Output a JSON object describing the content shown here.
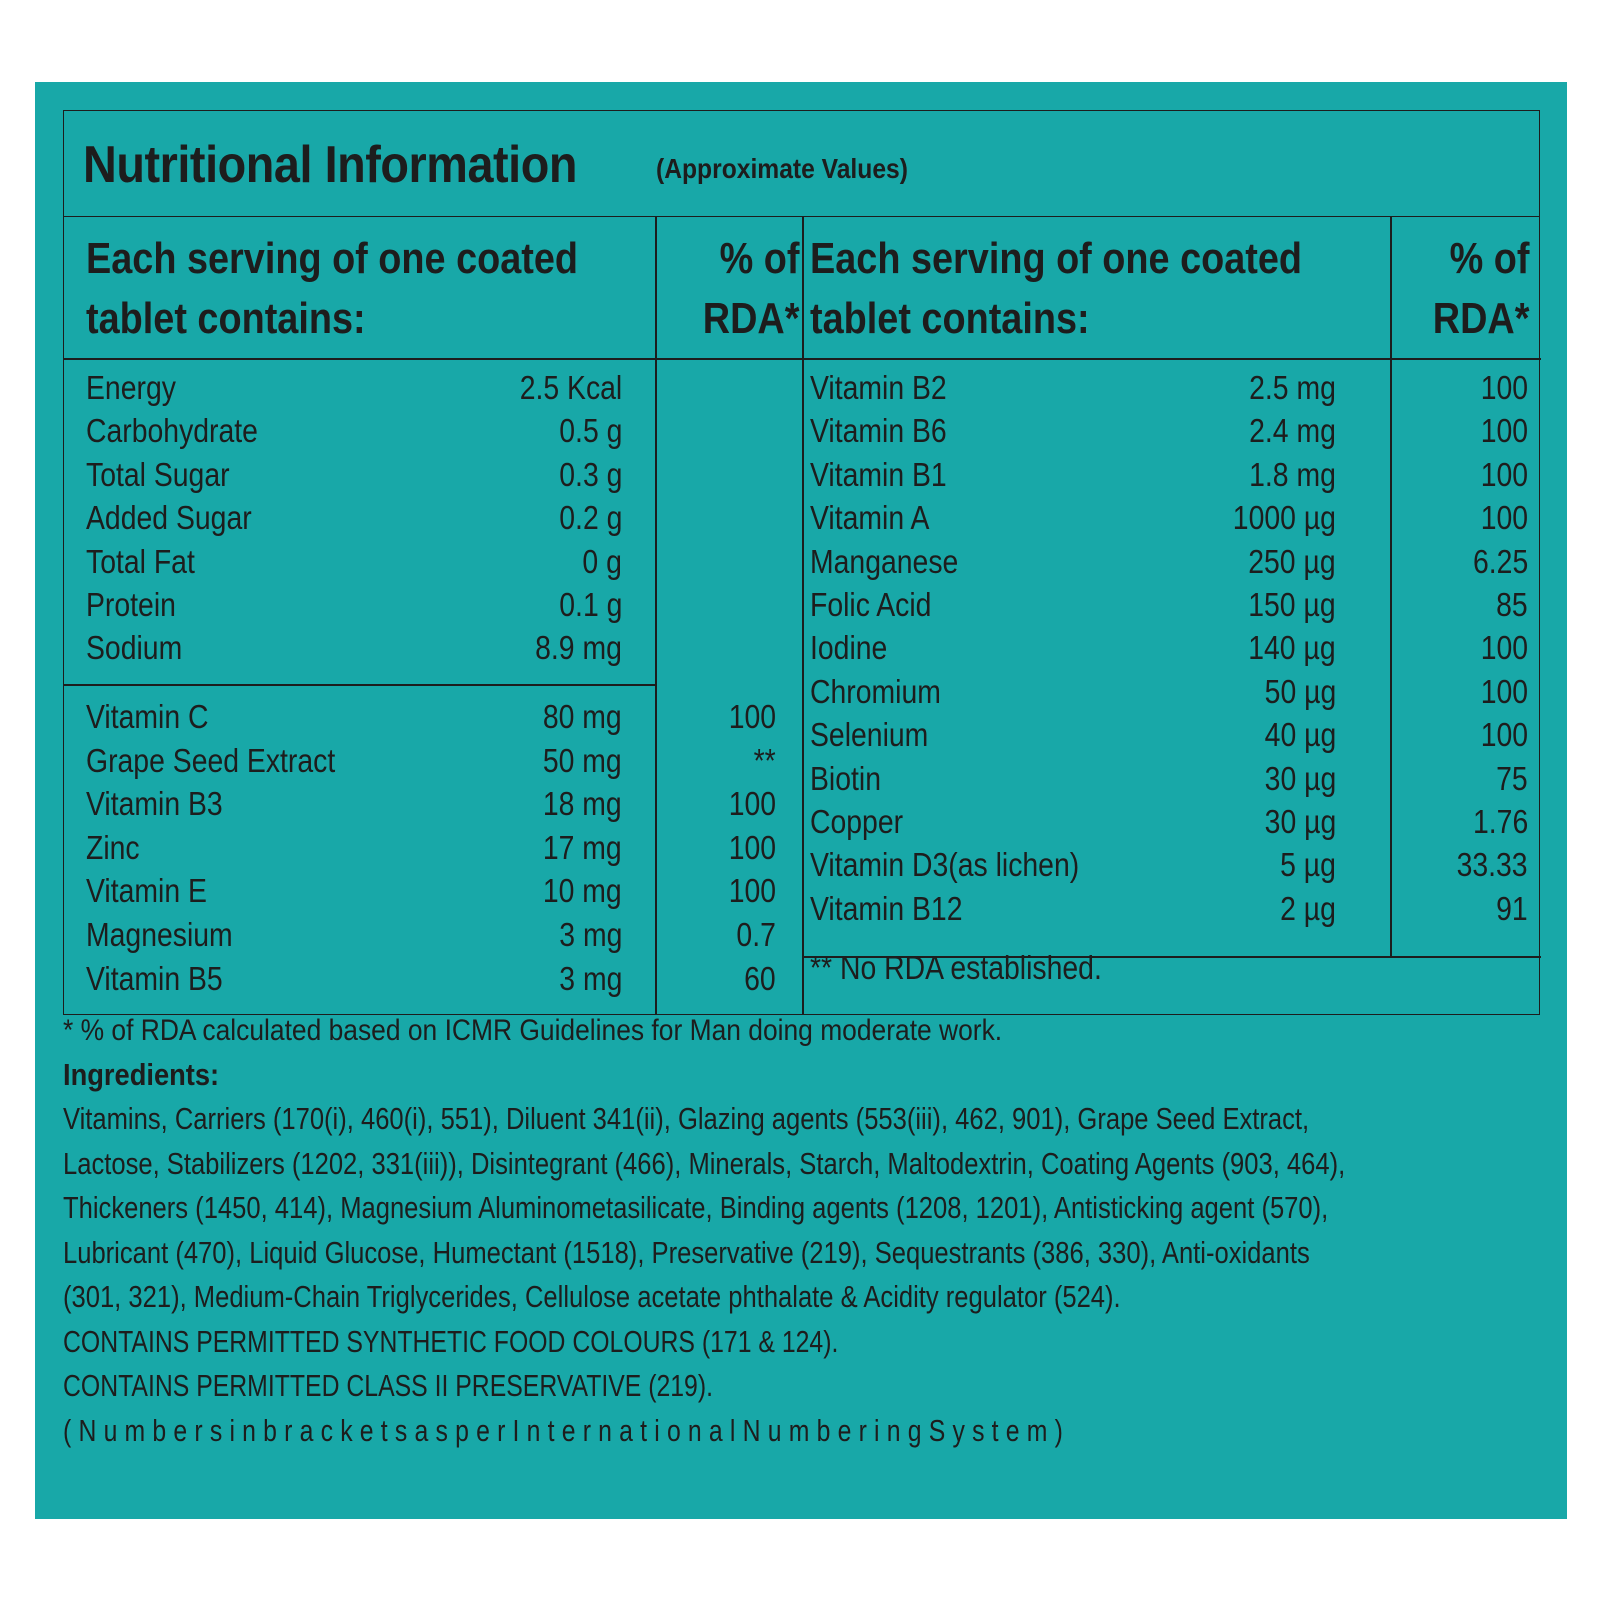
{
  "title": "Nutritional Information",
  "subtitle": "(Approximate Values)",
  "left": {
    "header_line1": "Each serving of one coated",
    "header_line2": "tablet contains:",
    "rda_line1": "% of",
    "rda_line2": "RDA*",
    "group1": [
      {
        "name": "Energy",
        "amount": "2.5 Kcal",
        "rda": ""
      },
      {
        "name": "Carbohydrate",
        "amount": "0.5 g",
        "rda": ""
      },
      {
        "name": "Total Sugar",
        "amount": "0.3 g",
        "rda": ""
      },
      {
        "name": "Added Sugar",
        "amount": "0.2 g",
        "rda": ""
      },
      {
        "name": "Total Fat",
        "amount": "0 g",
        "rda": ""
      },
      {
        "name": "Protein",
        "amount": "0.1 g",
        "rda": ""
      },
      {
        "name": "Sodium",
        "amount": "8.9 mg",
        "rda": ""
      }
    ],
    "group2": [
      {
        "name": "Vitamin C",
        "amount": "80 mg",
        "rda": "100"
      },
      {
        "name": "Grape Seed Extract",
        "amount": "50 mg",
        "rda": "**"
      },
      {
        "name": "Vitamin B3",
        "amount": "18 mg",
        "rda": "100"
      },
      {
        "name": "Zinc",
        "amount": "17 mg",
        "rda": "100"
      },
      {
        "name": "Vitamin E",
        "amount": "10 mg",
        "rda": "100"
      },
      {
        "name": "Magnesium",
        "amount": "3 mg",
        "rda": "0.7"
      },
      {
        "name": "Vitamin B5",
        "amount": "3 mg",
        "rda": "60"
      }
    ]
  },
  "right": {
    "header_line1": "Each serving of one coated",
    "header_line2": "tablet contains:",
    "rda_line1": "% of",
    "rda_line2": "RDA*",
    "rows": [
      {
        "name": "Vitamin B2",
        "amount": "2.5 mg",
        "rda": "100"
      },
      {
        "name": "Vitamin B6",
        "amount": "2.4 mg",
        "rda": "100"
      },
      {
        "name": "Vitamin B1",
        "amount": "1.8 mg",
        "rda": "100"
      },
      {
        "name": "Vitamin A",
        "amount": "1000 µg",
        "rda": "100"
      },
      {
        "name": "Manganese",
        "amount": "250 µg",
        "rda": "6.25"
      },
      {
        "name": "Folic Acid",
        "amount": "150 µg",
        "rda": "85"
      },
      {
        "name": "Iodine",
        "amount": "140 µg",
        "rda": "100"
      },
      {
        "name": "Chromium",
        "amount": "50 µg",
        "rda": "100"
      },
      {
        "name": "Selenium",
        "amount": "40 µg",
        "rda": "100"
      },
      {
        "name": "Biotin",
        "amount": "30 µg",
        "rda": "75"
      },
      {
        "name": "Copper",
        "amount": "30 µg",
        "rda": "1.76"
      },
      {
        "name": "Vitamin D3(as lichen)",
        "amount": "5 µg",
        "rda": "33.33"
      },
      {
        "name": "Vitamin B12",
        "amount": "2 µg",
        "rda": "91"
      }
    ],
    "footnote": "** No RDA established."
  },
  "rda_note": "* % of RDA calculated based on ICMR Guidelines for Man doing moderate work.",
  "ingredients_heading": "Ingredients:",
  "ingredients_lines": [
    "Vitamins, Carriers (170(i), 460(i), 551), Diluent 341(ii), Glazing agents (553(iii), 462, 901), Grape Seed Extract,",
    "Lactose, Stabilizers (1202, 331(iii)), Disintegrant (466), Minerals, Starch, Maltodextrin, Coating Agents (903, 464),",
    "Thickeners (1450, 414), Magnesium Aluminometasilicate, Binding agents (1208, 1201), Antisticking agent (570),",
    "Lubricant (470), Liquid Glucose, Humectant (1518), Preservative (219), Sequestrants (386, 330), Anti-oxidants",
    "(301, 321), Medium-Chain Triglycerides, Cellulose acetate phthalate & Acidity regulator (524).",
    "CONTAINS PERMITTED SYNTHETIC FOOD COLOURS (171 & 124).",
    "CONTAINS PERMITTED CLASS II PRESERVATIVE (219).",
    "(NumbersinbracketsasperInternationalNumberingSystem)"
  ],
  "colors": {
    "panel": "#18a8a8",
    "text": "#1d1d1d"
  }
}
